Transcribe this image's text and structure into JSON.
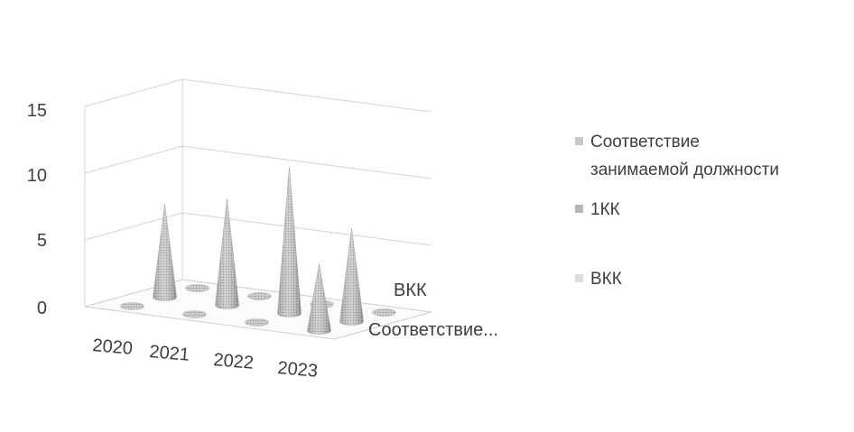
{
  "chart_data": {
    "type": "bar",
    "subtype": "3d-cone",
    "title": "",
    "categories": [
      "2020",
      "2021",
      "2022",
      "2023"
    ],
    "series": [
      {
        "name": "Соответствие занимаемой должности",
        "axis_label": "Соответствие...",
        "values": [
          0,
          0,
          0,
          5
        ],
        "color": "#c9c9c9"
      },
      {
        "name": "1КК",
        "axis_label": "",
        "values": [
          7,
          8,
          11,
          7
        ],
        "color": "#b5b5b5"
      },
      {
        "name": "ВКК",
        "axis_label": "ВКК",
        "values": [
          0,
          0,
          0,
          0
        ],
        "color": "#dedede"
      }
    ],
    "y_ticks": [
      "0",
      "5",
      "10",
      "15"
    ],
    "ylim": [
      0,
      15
    ],
    "grid": true,
    "legend_position": "right",
    "legend": {
      "item0_line1": "Соответствие",
      "item0_line2": "занимаемой должности",
      "item1": "1КК",
      "item2": "ВКК"
    }
  }
}
